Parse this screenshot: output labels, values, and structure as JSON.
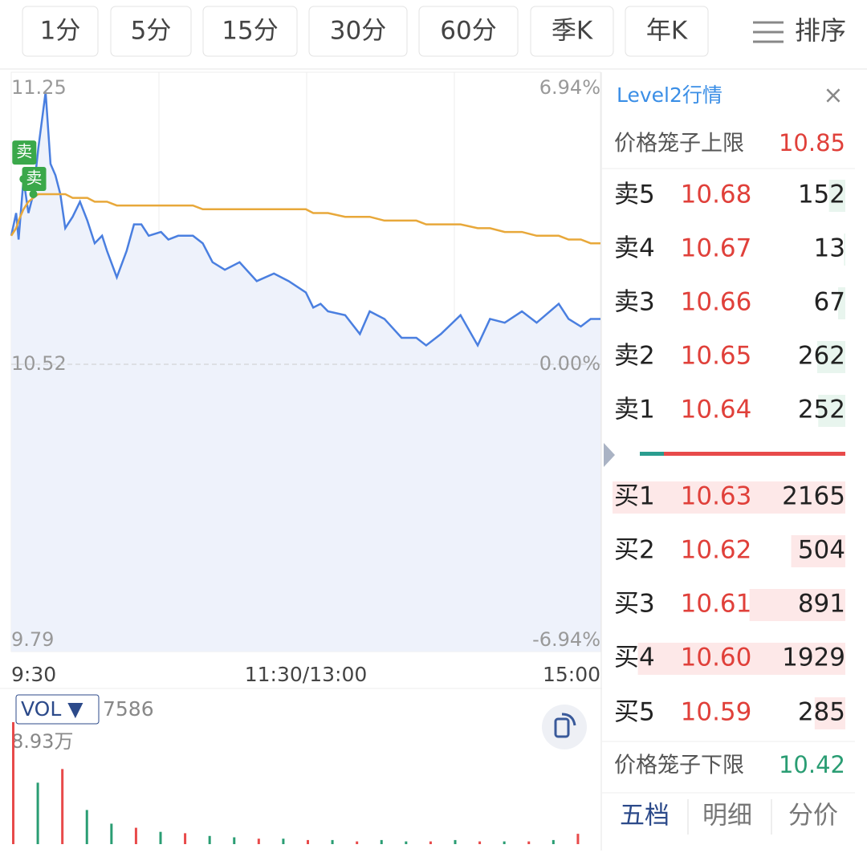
{
  "tabs": [
    "1分",
    "5分",
    "15分",
    "30分",
    "60分",
    "季K",
    "年K"
  ],
  "sort_label": "排序",
  "chart_data": {
    "type": "line",
    "x": [
      0,
      2,
      3,
      5,
      7,
      9,
      11,
      14,
      16,
      18,
      20,
      22,
      25,
      28,
      31,
      34,
      37,
      39,
      43,
      47,
      50,
      53,
      56,
      61,
      64,
      68,
      74,
      78,
      82,
      87,
      93,
      100,
      107,
      113,
      120,
      123,
      126,
      129,
      136,
      142,
      146,
      152,
      159,
      165,
      169,
      175,
      183,
      190,
      195,
      201,
      208,
      214,
      223,
      227,
      232,
      236,
      240
    ],
    "series": [
      {
        "color": "#4a7fe0",
        "values": [
          10.86,
          10.92,
          10.85,
          11.01,
          10.92,
          10.97,
          11.09,
          11.24,
          11.05,
          11.02,
          10.97,
          10.88,
          10.91,
          10.95,
          10.9,
          10.84,
          10.86,
          10.82,
          10.75,
          10.82,
          10.89,
          10.89,
          10.86,
          10.87,
          10.85,
          10.86,
          10.86,
          10.84,
          10.79,
          10.77,
          10.79,
          10.74,
          10.76,
          10.74,
          10.71,
          10.67,
          10.68,
          10.66,
          10.65,
          10.6,
          10.66,
          10.64,
          10.59,
          10.59,
          10.57,
          10.6,
          10.65,
          10.57,
          10.64,
          10.63,
          10.66,
          10.63,
          10.68,
          10.64,
          10.62,
          10.64,
          10.64
        ]
      },
      {
        "color": "#e8a83a",
        "values": [
          10.86,
          10.88,
          10.9,
          10.93,
          10.95,
          10.96,
          10.97,
          10.97,
          10.97,
          10.97,
          10.97,
          10.97,
          10.96,
          10.96,
          10.96,
          10.95,
          10.95,
          10.95,
          10.94,
          10.94,
          10.94,
          10.94,
          10.94,
          10.94,
          10.94,
          10.94,
          10.94,
          10.93,
          10.93,
          10.93,
          10.93,
          10.93,
          10.93,
          10.93,
          10.93,
          10.92,
          10.92,
          10.92,
          10.91,
          10.91,
          10.91,
          10.9,
          10.9,
          10.9,
          10.89,
          10.89,
          10.89,
          10.88,
          10.88,
          10.87,
          10.87,
          10.86,
          10.86,
          10.85,
          10.85,
          10.84,
          10.84
        ]
      }
    ],
    "xlim": [
      0,
      240
    ],
    "xticks": [
      {
        "value": 0,
        "label": "9:30"
      },
      {
        "value": 120,
        "label": "11:30/13:00"
      },
      {
        "value": 240,
        "label": "15:00"
      }
    ],
    "ylim": [
      9.79,
      11.25
    ],
    "yticks": [
      9.79,
      10.52,
      11.25
    ],
    "y2lim": [
      -6.94,
      6.94
    ],
    "y2ticks": [
      {
        "value": -6.94,
        "label": "-6.94%"
      },
      {
        "value": 0,
        "label": "0.00%"
      },
      {
        "value": 6.94,
        "label": "6.94%"
      }
    ],
    "annotations": [
      {
        "text": "卖",
        "x": 5
      },
      {
        "text": "卖",
        "x": 9
      }
    ]
  },
  "volume": {
    "type": "bar",
    "indicator": "VOL ▼",
    "current": 7586,
    "x": [
      0,
      10,
      20,
      30,
      40,
      50,
      60,
      70,
      80,
      90,
      100,
      110,
      120,
      130,
      140,
      150,
      160,
      170,
      180,
      190,
      200,
      210,
      220,
      230
    ],
    "values": [
      89300,
      45000,
      55000,
      25000,
      15000,
      12000,
      9000,
      8000,
      6000,
      5000,
      4000,
      4000,
      3000,
      3000,
      2000,
      3000,
      2000,
      2000,
      3000,
      2000,
      2000,
      2000,
      3000,
      7586
    ],
    "colors": [
      "#e84a4a",
      "#2a9d73",
      "#e84a4a",
      "#2a9d73",
      "#2a9d73",
      "#e84a4a",
      "#2a9d73",
      "#e84a4a",
      "#2a9d73",
      "#2a9d73",
      "#e84a4a",
      "#2a9d73",
      "#e84a4a",
      "#2a9d73",
      "#e84a4a",
      "#2a9d73",
      "#2a9d73",
      "#e84a4a",
      "#2a9d73",
      "#e84a4a",
      "#2a9d73",
      "#e84a4a",
      "#2a9d73",
      "#e84a4a"
    ],
    "xlim": [
      0,
      240
    ],
    "ylim": [
      0,
      89300
    ],
    "yticks": [
      {
        "value": 89300,
        "label": "8.93万"
      }
    ]
  },
  "order_book": {
    "title": "Level2行情",
    "close": "×",
    "upper_limit": {
      "label": "价格笼子上限",
      "price": "10.85"
    },
    "asks": [
      {
        "label": "卖5",
        "price": "10.68",
        "volume": 152
      },
      {
        "label": "卖4",
        "price": "10.67",
        "volume": 13
      },
      {
        "label": "卖3",
        "price": "10.66",
        "volume": 67
      },
      {
        "label": "卖2",
        "price": "10.65",
        "volume": 262
      },
      {
        "label": "卖1",
        "price": "10.64",
        "volume": 252
      }
    ],
    "bids": [
      {
        "label": "买1",
        "price": "10.63",
        "volume": 2165
      },
      {
        "label": "买2",
        "price": "10.62",
        "volume": 504
      },
      {
        "label": "买3",
        "price": "10.61",
        "volume": 891
      },
      {
        "label": "买4",
        "price": "10.60",
        "volume": 1929
      },
      {
        "label": "买5",
        "price": "10.59",
        "volume": 285
      }
    ],
    "lower_limit": {
      "label": "价格笼子下限",
      "price": "10.42"
    },
    "tabs": [
      "五档",
      "明细",
      "分价"
    ]
  }
}
